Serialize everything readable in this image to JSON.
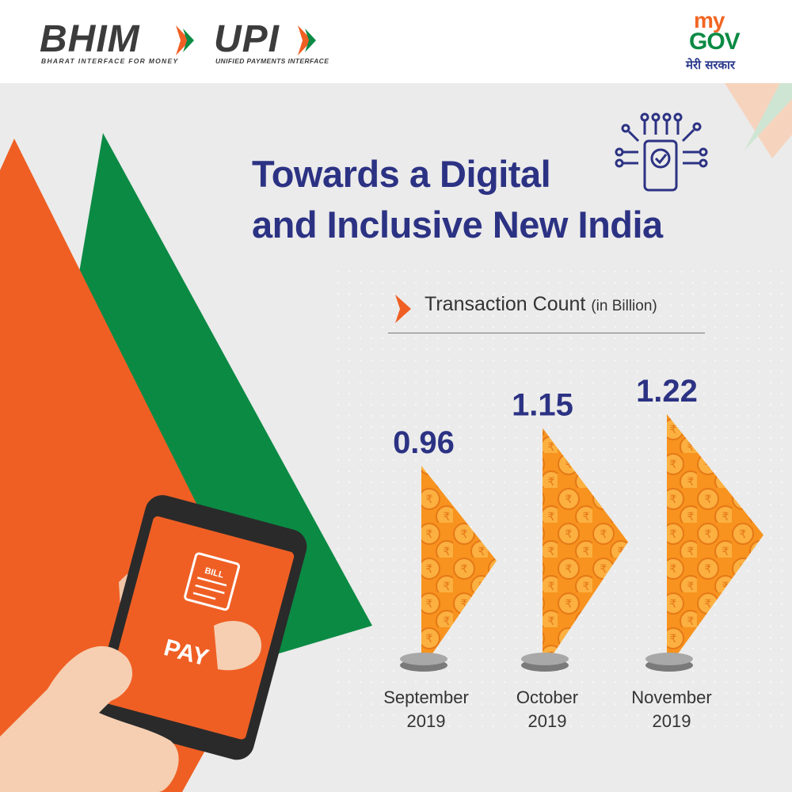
{
  "header": {
    "bhim_logo": "BHIM",
    "bhim_tagline": "BHARAT INTERFACE FOR MONEY",
    "upi_logo": "UPI",
    "upi_tagline": "UNIFIED PAYMENTS INTERFACE",
    "mygov_my": "my",
    "mygov_gov": "GOV",
    "mygov_tagline": "मेरी सरकार"
  },
  "title_line1": "Towards a Digital",
  "title_line2": "and Inclusive New India",
  "phone": {
    "bill_label": "BILL",
    "pay_label": "PAY"
  },
  "colors": {
    "saffron": "#ef5f24",
    "green": "#0b8a44",
    "navy": "#2c3283",
    "flag_orange": "#f7931e"
  },
  "chart_data": {
    "type": "bar",
    "title": "Transaction Count",
    "unit": "(in Billion)",
    "categories": [
      {
        "month": "September",
        "year": "2019"
      },
      {
        "month": "October",
        "year": "2019"
      },
      {
        "month": "November",
        "year": "2019"
      }
    ],
    "values": [
      0.96,
      1.15,
      1.22
    ],
    "value_labels": [
      "0.96",
      "1.15",
      "1.22"
    ]
  }
}
